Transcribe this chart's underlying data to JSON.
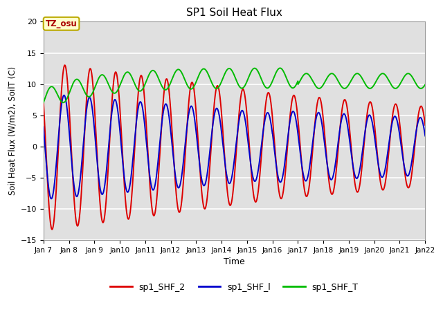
{
  "title": "SP1 Soil Heat Flux",
  "xlabel": "Time",
  "ylabel": "Soil Heat Flux (W/m2), SoilT (C)",
  "ylim": [
    -15,
    20
  ],
  "xlim_days": [
    7,
    22
  ],
  "background_color": "#ffffff",
  "plot_bg_color": "#e0e0e0",
  "grid_color": "#ffffff",
  "tz_label": "TZ_osu",
  "tz_bg": "#ffffcc",
  "tz_border": "#bbaa00",
  "tz_text_color": "#aa0000",
  "colors": {
    "sp1_SHF_2": "#dd0000",
    "sp1_SHF_1": "#0000cc",
    "sp1_SHF_T": "#00bb00"
  },
  "legend_labels": [
    "sp1_SHF_2",
    "sp1_SHF_l",
    "sp1_SHF_T"
  ],
  "tick_labels": [
    "Jan 7",
    "Jan 8",
    "Jan 9",
    "Jan 10",
    "Jan 11",
    "Jan 12",
    "Jan 13",
    "Jan 14",
    "Jan 15",
    "Jan 16",
    "Jan 17",
    "Jan 18",
    "Jan 19",
    "Jan 20",
    "Jan 21",
    "Jan 22"
  ],
  "tick_positions": [
    7,
    8,
    9,
    10,
    11,
    12,
    13,
    14,
    15,
    16,
    17,
    18,
    19,
    20,
    21,
    22
  ],
  "yticks": [
    -15,
    -10,
    -5,
    0,
    5,
    10,
    15,
    20
  ]
}
